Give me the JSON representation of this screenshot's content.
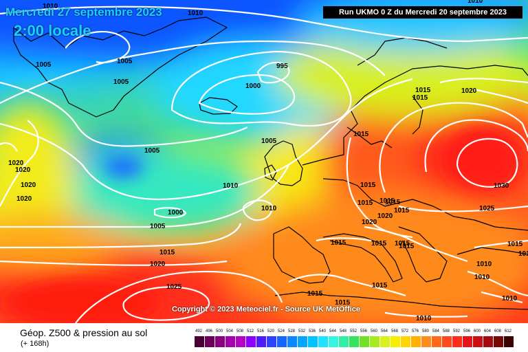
{
  "header": {
    "date": "Mercredi 27 septembre 2023",
    "time": "2:00 locale",
    "run": "Run UKMO 0 Z du Mercredi 20 septembre 2023"
  },
  "copyright": "Copyright © 2023 Meteociel.fr - Source UK MetOffice",
  "footer": {
    "product": "Géop. Z500 & pression au sol",
    "forecast": "(+ 168h)"
  },
  "colors": {
    "low": "#1565ff",
    "mid": "#23d6ff",
    "neutral": "#f4f000",
    "warm": "#ff8c1a",
    "hot": "#ff2d1a",
    "isobar": "#ffffff"
  },
  "scale": {
    "ticks": [
      "492",
      "496",
      "500",
      "504",
      "508",
      "512",
      "516",
      "520",
      "524",
      "528",
      "532",
      "536",
      "540",
      "544",
      "548",
      "552",
      "556",
      "560",
      "564",
      "568",
      "572",
      "576",
      "580",
      "584",
      "588",
      "592",
      "596",
      "600",
      "604",
      "608",
      "612"
    ],
    "colors": [
      "#4a0033",
      "#6b0057",
      "#8b007f",
      "#a400a7",
      "#b500c8",
      "#8a00ff",
      "#4d1bff",
      "#2e42ff",
      "#1565ff",
      "#0c88ff",
      "#00a6ff",
      "#00c4ff",
      "#1ee2ff",
      "#36f5e0",
      "#2ff0a0",
      "#35e35c",
      "#6fe223",
      "#a7ea1f",
      "#d8f218",
      "#f6f000",
      "#ffd400",
      "#ffb000",
      "#ff8c1a",
      "#ff6a1a",
      "#ff491a",
      "#ff2d1a",
      "#e5141a",
      "#c70f15",
      "#a40b10",
      "#7a0708",
      "#3d0303"
    ]
  },
  "pressure_labels": [
    {
      "text": "1010"
    },
    {
      "text": "1005"
    },
    {
      "text": "1005"
    },
    {
      "text": "1005"
    },
    {
      "text": "995"
    },
    {
      "text": "1000"
    },
    {
      "text": "1005"
    },
    {
      "text": "1005"
    },
    {
      "text": "1020"
    },
    {
      "text": "1020"
    },
    {
      "text": "1020"
    },
    {
      "text": "1020"
    },
    {
      "text": "1010"
    },
    {
      "text": "1000"
    },
    {
      "text": "1010"
    },
    {
      "text": "1005"
    },
    {
      "text": "1015"
    },
    {
      "text": "1020"
    },
    {
      "text": "1025"
    },
    {
      "text": "1010"
    },
    {
      "text": "1015"
    },
    {
      "text": "1020"
    },
    {
      "text": "1015"
    },
    {
      "text": "1015"
    },
    {
      "text": "1030"
    },
    {
      "text": "1025"
    },
    {
      "text": "1015"
    },
    {
      "text": "1015"
    },
    {
      "text": "1015"
    },
    {
      "text": "1015"
    },
    {
      "text": "1015"
    },
    {
      "text": "1015"
    },
    {
      "text": "1015"
    },
    {
      "text": "1020"
    },
    {
      "text": "1020"
    },
    {
      "text": "1015"
    },
    {
      "text": "1015"
    },
    {
      "text": "1015"
    },
    {
      "text": "1015"
    },
    {
      "text": "1015"
    },
    {
      "text": "1015"
    },
    {
      "text": "1010"
    },
    {
      "text": "1010"
    },
    {
      "text": "1010"
    },
    {
      "text": "1010"
    },
    {
      "text": "1015"
    },
    {
      "text": "1010"
    }
  ]
}
